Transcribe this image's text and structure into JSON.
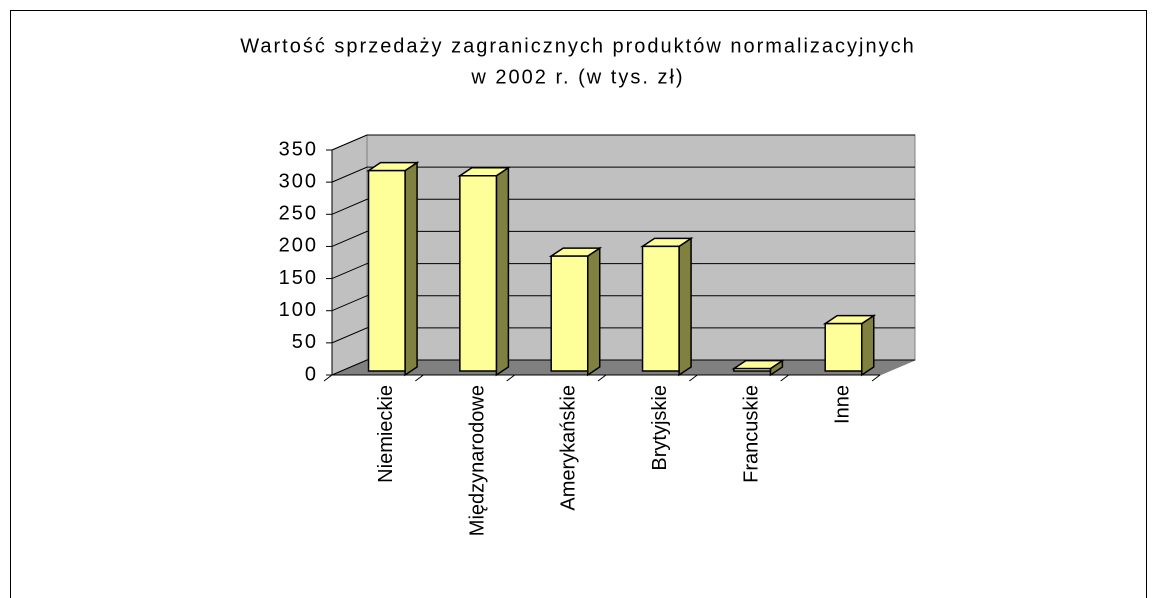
{
  "chart_data": {
    "type": "bar3d",
    "title": [
      "Wartość sprzedaży zagranicznych produktów normalizacyjnych",
      "w 2002 r. (w tys. zł)"
    ],
    "categories": [
      "Niemieckie",
      "Międzynarodowe",
      "Amerykańskie",
      "Brytyjskie",
      "Francuskie",
      "Inne"
    ],
    "values": [
      318,
      310,
      185,
      200,
      10,
      80
    ],
    "color": "#ffff99",
    "ylim": [
      0,
      350
    ],
    "yticks": [
      0,
      50,
      100,
      150,
      200,
      250,
      300,
      350
    ],
    "grid": true
  }
}
